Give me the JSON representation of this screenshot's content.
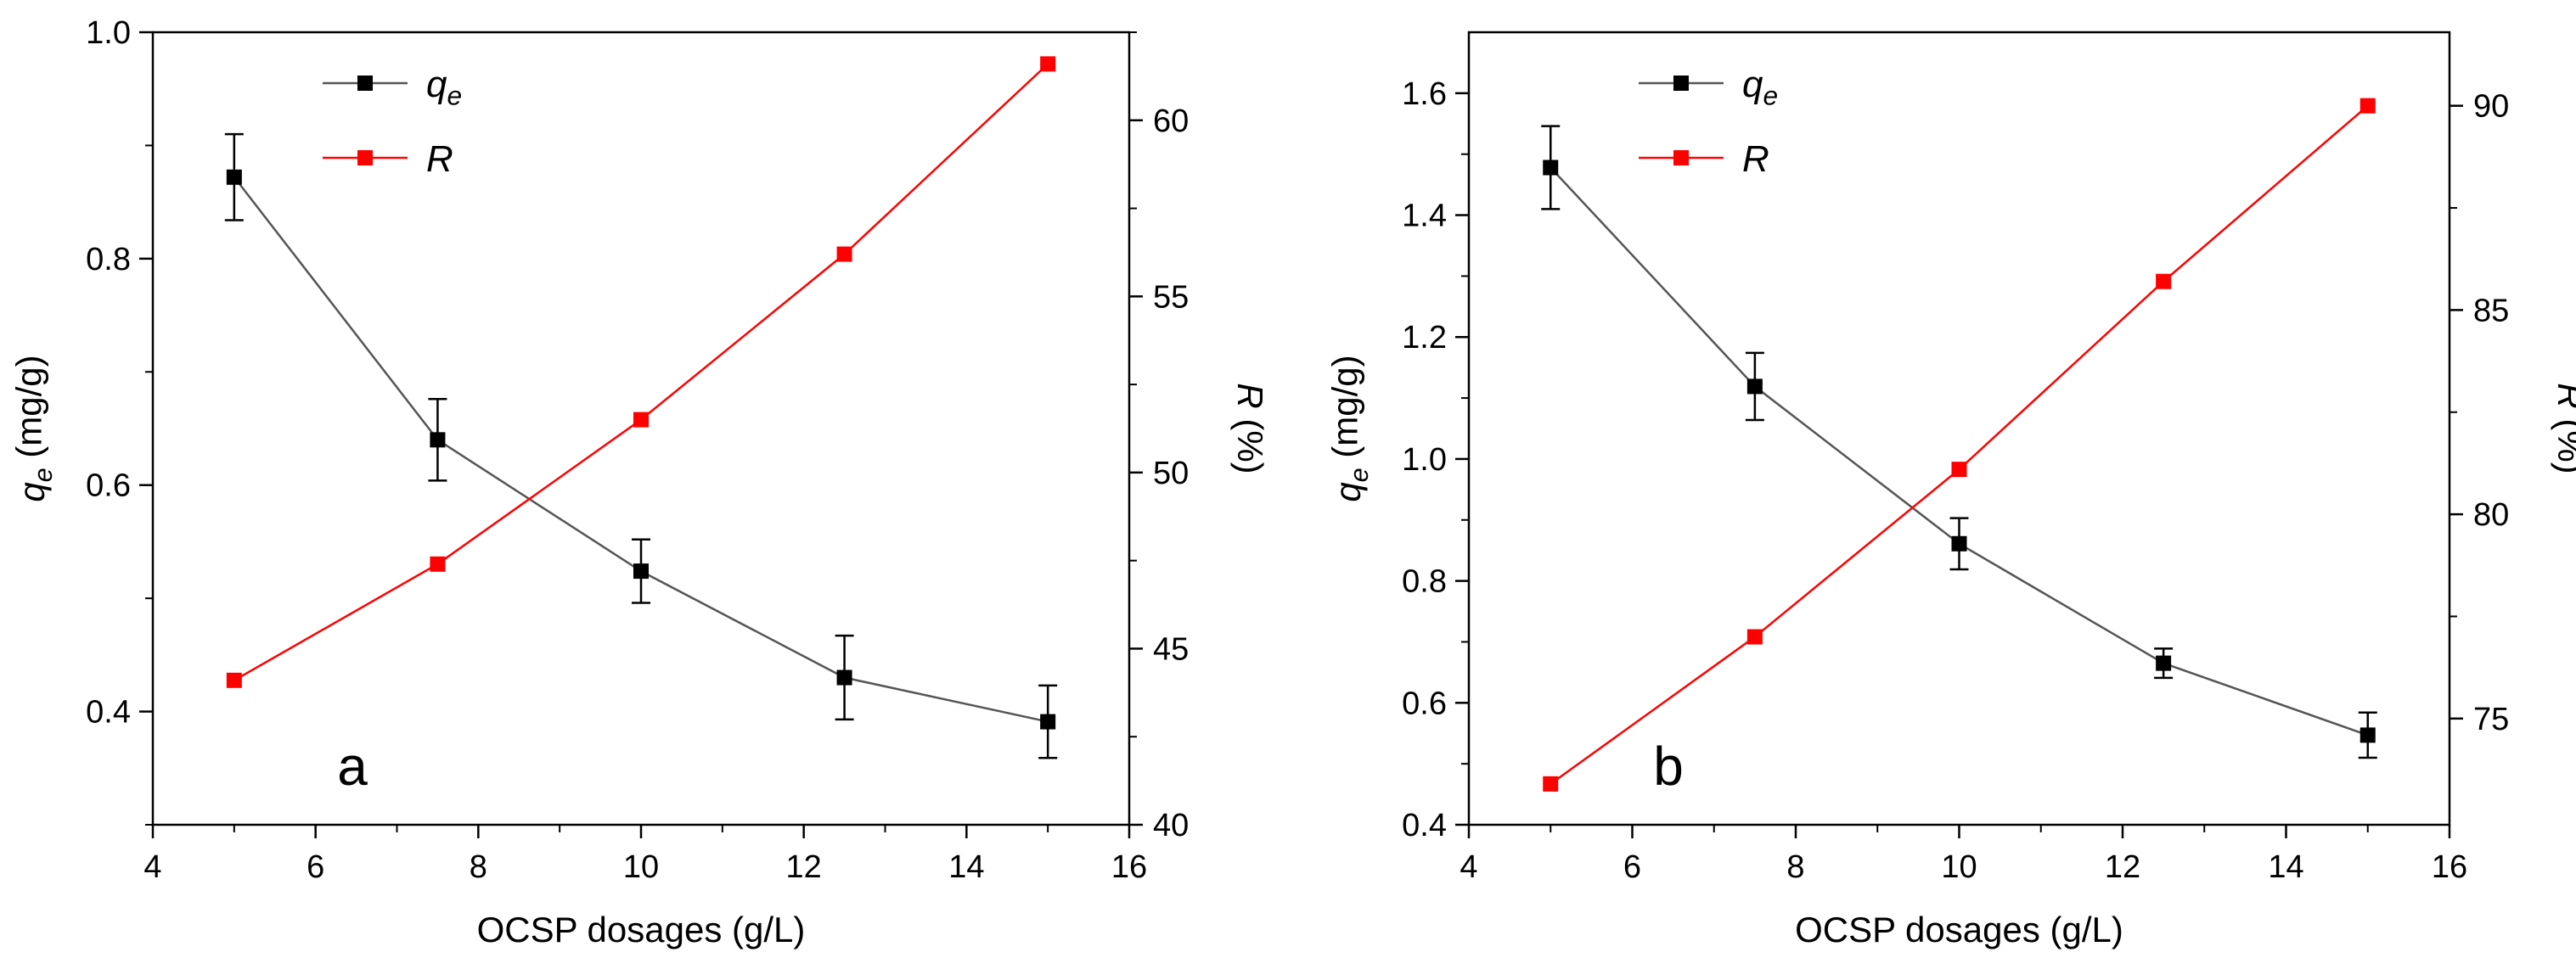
{
  "chart_data": [
    {
      "type": "line",
      "panel_label": "a",
      "xlabel": "OCSP dosages (g/L)",
      "ylabel": {
        "main": "q",
        "sub": "e",
        "rest": " (mg/g)"
      },
      "y2label": {
        "main": "R",
        "rest": " (%)"
      },
      "xlim": [
        4,
        16
      ],
      "ylim": [
        0.3,
        1.0
      ],
      "y2lim": [
        40,
        62.5
      ],
      "xticks": [
        4,
        6,
        8,
        10,
        12,
        14,
        16
      ],
      "yticks": [
        0.4,
        0.6,
        0.8,
        1.0
      ],
      "y2ticks": [
        40,
        45,
        50,
        55,
        60
      ],
      "ydecimals": 1,
      "x": [
        5,
        7.5,
        10,
        12.5,
        15
      ],
      "series": [
        {
          "name": "qe",
          "label": {
            "main": "q",
            "sub": "e"
          },
          "axis": "left",
          "color": "#000000",
          "line_color": "#555555",
          "values": [
            0.872,
            0.64,
            0.524,
            0.43,
            0.391
          ],
          "errors": [
            0.038,
            0.036,
            0.028,
            0.037,
            0.032
          ]
        },
        {
          "name": "R",
          "label": {
            "main": "R"
          },
          "axis": "right",
          "color": "#ff0000",
          "line_color": "#ff0000",
          "values": [
            44.1,
            47.4,
            51.5,
            56.2,
            61.6
          ]
        }
      ]
    },
    {
      "type": "line",
      "panel_label": "b",
      "xlabel": "OCSP dosages (g/L)",
      "ylabel": {
        "main": "q",
        "sub": "e",
        "rest": " (mg/g)"
      },
      "y2label": {
        "main": "R",
        "rest": " (%)"
      },
      "xlim": [
        4,
        16
      ],
      "ylim": [
        0.4,
        1.7
      ],
      "y2lim": [
        72.4,
        91.8
      ],
      "xticks": [
        4,
        6,
        8,
        10,
        12,
        14,
        16
      ],
      "yticks": [
        0.4,
        0.6,
        0.8,
        1.0,
        1.2,
        1.4,
        1.6
      ],
      "y2ticks": [
        75,
        80,
        85,
        90
      ],
      "ydecimals": 1,
      "x": [
        5,
        7.5,
        10,
        12.5,
        15
      ],
      "series": [
        {
          "name": "qe",
          "label": {
            "main": "q",
            "sub": "e"
          },
          "axis": "left",
          "color": "#000000",
          "line_color": "#555555",
          "values": [
            1.478,
            1.119,
            0.861,
            0.665,
            0.547
          ],
          "errors": [
            0.068,
            0.055,
            0.042,
            0.024,
            0.037
          ]
        },
        {
          "name": "R",
          "label": {
            "main": "R"
          },
          "axis": "right",
          "color": "#ff0000",
          "line_color": "#ff0000",
          "values": [
            73.4,
            77.0,
            81.1,
            85.7,
            90.0
          ]
        }
      ]
    }
  ]
}
